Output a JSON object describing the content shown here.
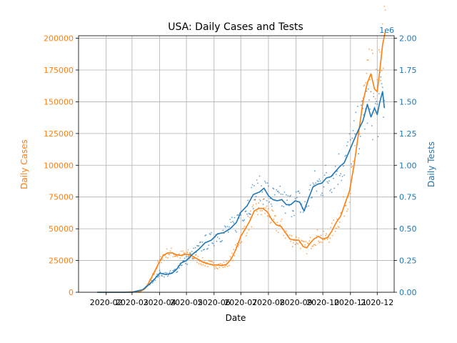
{
  "chart_data": {
    "type": "line",
    "title": "USA: Daily Cases and Tests",
    "xlabel": "Date",
    "ylabel_left": "Daily Cases",
    "ylabel_right": "Daily Tests",
    "right_axis_multiplier": "1e6",
    "xlim": [
      "2020-01-01",
      "2020-12-20"
    ],
    "ylim_left": [
      0,
      202000
    ],
    "ylim_right": [
      0,
      2.02
    ],
    "grid": true,
    "colors": {
      "cases": "#ff7f0e",
      "tests": "#1f77b4"
    },
    "x_ticks": [
      {
        "date": "2020-02-01",
        "label": "2020-02"
      },
      {
        "date": "2020-03-01",
        "label": "2020-03"
      },
      {
        "date": "2020-04-01",
        "label": "2020-04"
      },
      {
        "date": "2020-05-01",
        "label": "2020-05"
      },
      {
        "date": "2020-06-01",
        "label": "2020-06"
      },
      {
        "date": "2020-07-01",
        "label": "2020-07"
      },
      {
        "date": "2020-08-01",
        "label": "2020-08"
      },
      {
        "date": "2020-09-01",
        "label": "2020-09"
      },
      {
        "date": "2020-10-01",
        "label": "2020-10"
      },
      {
        "date": "2020-11-01",
        "label": "2020-11"
      },
      {
        "date": "2020-12-01",
        "label": "2020-12"
      }
    ],
    "y_ticks_left": [
      {
        "value": 0,
        "label": "0"
      },
      {
        "value": 25000,
        "label": "25000"
      },
      {
        "value": 50000,
        "label": "50000"
      },
      {
        "value": 75000,
        "label": "75000"
      },
      {
        "value": 100000,
        "label": "100000"
      },
      {
        "value": 125000,
        "label": "125000"
      },
      {
        "value": 150000,
        "label": "150000"
      },
      {
        "value": 175000,
        "label": "175000"
      },
      {
        "value": 200000,
        "label": "200000"
      }
    ],
    "y_ticks_right": [
      {
        "value": 0,
        "label": "0.00"
      },
      {
        "value": 0.25,
        "label": "0.25"
      },
      {
        "value": 0.5,
        "label": "0.50"
      },
      {
        "value": 0.75,
        "label": "0.75"
      },
      {
        "value": 1.0,
        "label": "1.00"
      },
      {
        "value": 1.25,
        "label": "1.25"
      },
      {
        "value": 1.5,
        "label": "1.50"
      },
      {
        "value": 1.75,
        "label": "1.75"
      },
      {
        "value": 2.0,
        "label": "2.00"
      }
    ],
    "series": [
      {
        "key": "cases_avg",
        "axis": "left",
        "points": [
          [
            "2020-01-22",
            0
          ],
          [
            "2020-02-20",
            0
          ],
          [
            "2020-03-10",
            500
          ],
          [
            "2020-03-16",
            3000
          ],
          [
            "2020-03-21",
            9000
          ],
          [
            "2020-03-26",
            16000
          ],
          [
            "2020-03-31",
            23000
          ],
          [
            "2020-04-05",
            29000
          ],
          [
            "2020-04-10",
            31000
          ],
          [
            "2020-04-15",
            31000
          ],
          [
            "2020-04-20",
            29500
          ],
          [
            "2020-04-25",
            29000
          ],
          [
            "2020-04-30",
            30000
          ],
          [
            "2020-05-05",
            29500
          ],
          [
            "2020-05-10",
            27500
          ],
          [
            "2020-05-15",
            25500
          ],
          [
            "2020-05-20",
            23500
          ],
          [
            "2020-05-25",
            22500
          ],
          [
            "2020-05-31",
            21500
          ],
          [
            "2020-06-05",
            21500
          ],
          [
            "2020-06-10",
            21000
          ],
          [
            "2020-06-15",
            22000
          ],
          [
            "2020-06-20",
            26000
          ],
          [
            "2020-06-25",
            33000
          ],
          [
            "2020-07-01",
            44000
          ],
          [
            "2020-07-06",
            50000
          ],
          [
            "2020-07-11",
            56000
          ],
          [
            "2020-07-16",
            64000
          ],
          [
            "2020-07-21",
            66000
          ],
          [
            "2020-07-26",
            66000
          ],
          [
            "2020-07-31",
            63000
          ],
          [
            "2020-08-05",
            57000
          ],
          [
            "2020-08-10",
            53000
          ],
          [
            "2020-08-15",
            52000
          ],
          [
            "2020-08-20",
            47000
          ],
          [
            "2020-08-25",
            42000
          ],
          [
            "2020-08-30",
            41000
          ],
          [
            "2020-09-04",
            41000
          ],
          [
            "2020-09-09",
            36000
          ],
          [
            "2020-09-13",
            35000
          ],
          [
            "2020-09-16",
            38000
          ],
          [
            "2020-09-21",
            42000
          ],
          [
            "2020-09-26",
            44000
          ],
          [
            "2020-10-01",
            42000
          ],
          [
            "2020-10-06",
            43000
          ],
          [
            "2020-10-11",
            48000
          ],
          [
            "2020-10-16",
            55000
          ],
          [
            "2020-10-21",
            60000
          ],
          [
            "2020-10-26",
            70000
          ],
          [
            "2020-10-31",
            80000
          ],
          [
            "2020-11-05",
            100000
          ],
          [
            "2020-11-10",
            125000
          ],
          [
            "2020-11-15",
            150000
          ],
          [
            "2020-11-20",
            165000
          ],
          [
            "2020-11-24",
            172000
          ],
          [
            "2020-11-28",
            160000
          ],
          [
            "2020-12-01",
            158000
          ],
          [
            "2020-12-04",
            175000
          ],
          [
            "2020-12-07",
            195000
          ],
          [
            "2020-12-10",
            205000
          ]
        ]
      },
      {
        "key": "tests_avg",
        "axis": "right",
        "points": [
          [
            "2020-01-22",
            0
          ],
          [
            "2020-03-01",
            0
          ],
          [
            "2020-03-13",
            0.02
          ],
          [
            "2020-03-20",
            0.06
          ],
          [
            "2020-03-27",
            0.11
          ],
          [
            "2020-04-01",
            0.15
          ],
          [
            "2020-04-08",
            0.14
          ],
          [
            "2020-04-15",
            0.15
          ],
          [
            "2020-04-20",
            0.18
          ],
          [
            "2020-04-25",
            0.23
          ],
          [
            "2020-05-01",
            0.25
          ],
          [
            "2020-05-08",
            0.3
          ],
          [
            "2020-05-15",
            0.34
          ],
          [
            "2020-05-22",
            0.39
          ],
          [
            "2020-05-29",
            0.41
          ],
          [
            "2020-06-05",
            0.46
          ],
          [
            "2020-06-12",
            0.47
          ],
          [
            "2020-06-19",
            0.5
          ],
          [
            "2020-06-26",
            0.55
          ],
          [
            "2020-07-01",
            0.63
          ],
          [
            "2020-07-08",
            0.68
          ],
          [
            "2020-07-15",
            0.77
          ],
          [
            "2020-07-22",
            0.79
          ],
          [
            "2020-07-27",
            0.82
          ],
          [
            "2020-08-01",
            0.76
          ],
          [
            "2020-08-06",
            0.73
          ],
          [
            "2020-08-11",
            0.72
          ],
          [
            "2020-08-16",
            0.73
          ],
          [
            "2020-08-21",
            0.69
          ],
          [
            "2020-08-26",
            0.69
          ],
          [
            "2020-08-31",
            0.72
          ],
          [
            "2020-09-05",
            0.71
          ],
          [
            "2020-09-10",
            0.64
          ],
          [
            "2020-09-15",
            0.74
          ],
          [
            "2020-09-20",
            0.83
          ],
          [
            "2020-09-25",
            0.85
          ],
          [
            "2020-09-30",
            0.86
          ],
          [
            "2020-10-05",
            0.9
          ],
          [
            "2020-10-10",
            0.91
          ],
          [
            "2020-10-15",
            0.95
          ],
          [
            "2020-10-20",
            0.99
          ],
          [
            "2020-10-25",
            1.02
          ],
          [
            "2020-10-30",
            1.1
          ],
          [
            "2020-11-05",
            1.2
          ],
          [
            "2020-11-10",
            1.28
          ],
          [
            "2020-11-15",
            1.35
          ],
          [
            "2020-11-20",
            1.48
          ],
          [
            "2020-11-24",
            1.38
          ],
          [
            "2020-11-28",
            1.45
          ],
          [
            "2020-12-01",
            1.4
          ],
          [
            "2020-12-04",
            1.5
          ],
          [
            "2020-12-07",
            1.58
          ],
          [
            "2020-12-09",
            1.45
          ]
        ]
      }
    ]
  }
}
